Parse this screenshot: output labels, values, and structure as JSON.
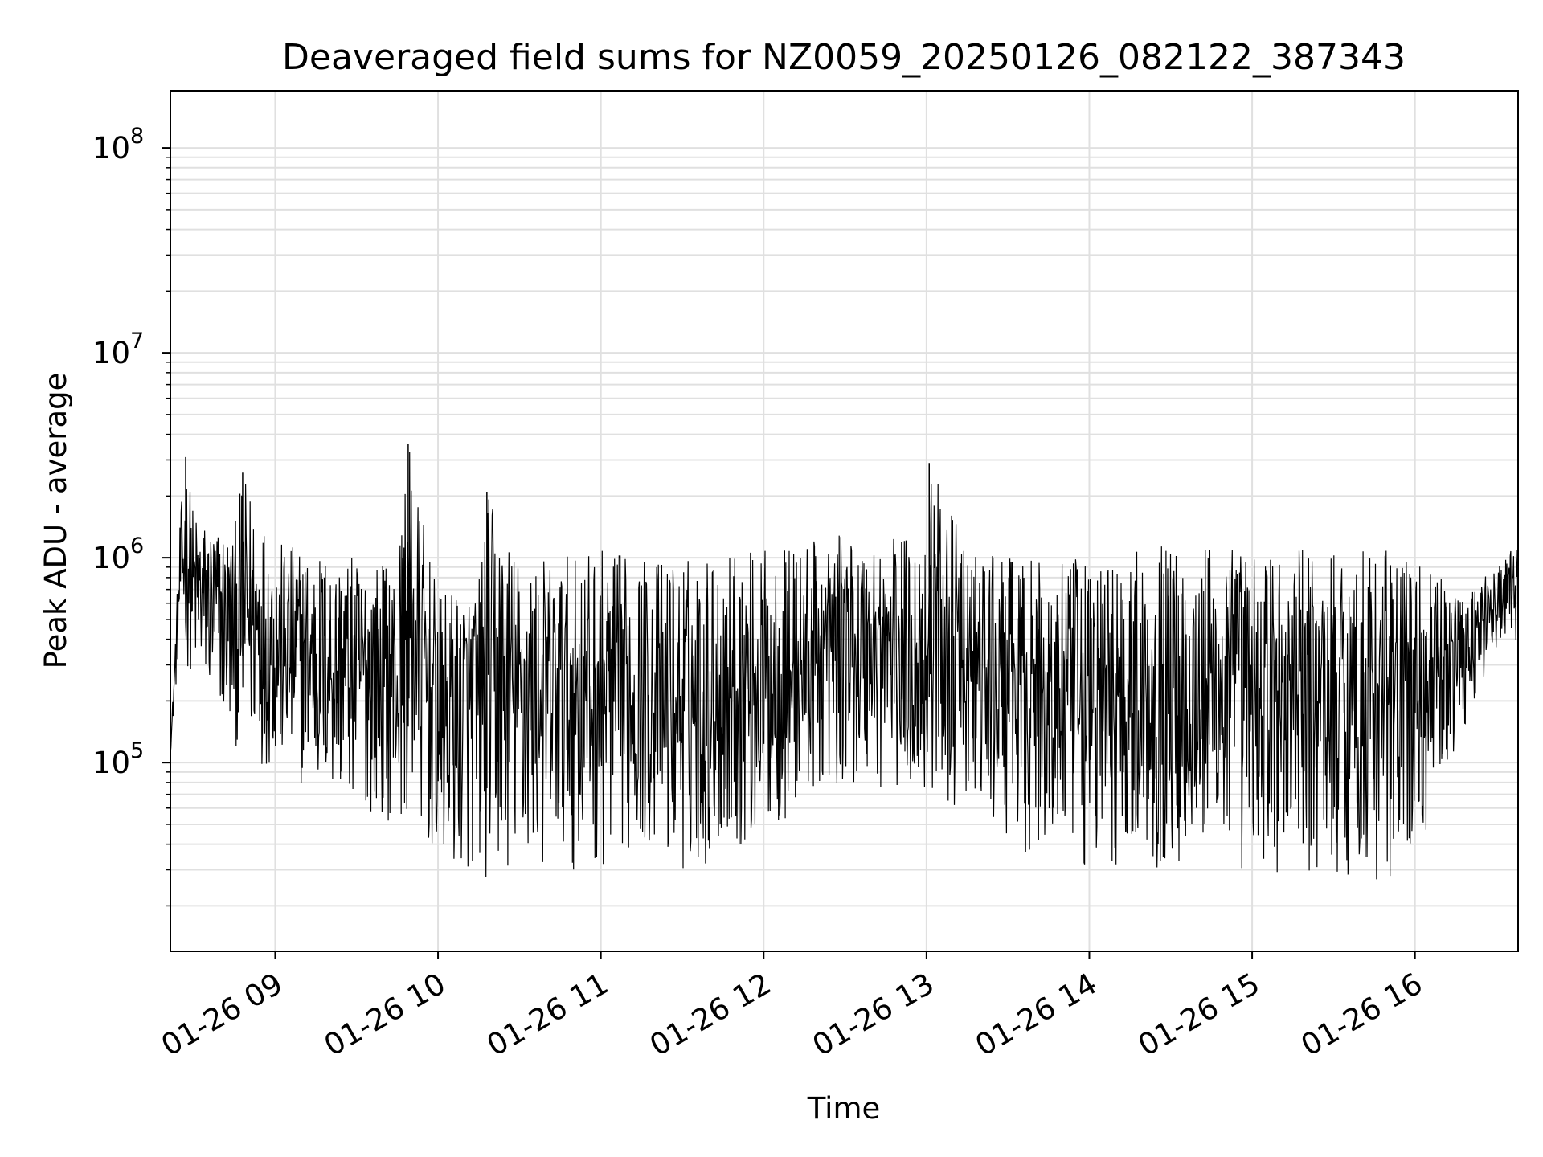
{
  "chart_data": {
    "type": "line",
    "title": "Deaveraged field sums for NZ0059_20250126_082122_387343",
    "xlabel": "Time",
    "ylabel": "Peak ADU - average",
    "yscale": "log",
    "ylim": [
      12000,
      190000000
    ],
    "xlim": [
      "2025-01-26T08:21:22",
      "2025-01-26T16:38:00"
    ],
    "x_ticks": [
      "01-26 09",
      "01-26 10",
      "01-26 11",
      "01-26 12",
      "01-26 13",
      "01-26 14",
      "01-26 15",
      "01-26 16"
    ],
    "y_ticks": [
      {
        "base": "10",
        "exp": "5"
      },
      {
        "base": "10",
        "exp": "6"
      },
      {
        "base": "10",
        "exp": "7"
      },
      {
        "base": "10",
        "exp": "8"
      }
    ],
    "grid": true,
    "line_color": "#000000",
    "series": [
      {
        "x": [
          "2025-01-26T08:21:22",
          "2025-01-26T08:25:00",
          "2025-01-26T08:27:00",
          "2025-01-26T08:30:00",
          "2025-01-26T08:35:00",
          "2025-01-26T08:45:00",
          "2025-01-26T08:48:00",
          "2025-01-26T09:00:00",
          "2025-01-26T09:15:00",
          "2025-01-26T09:30:00",
          "2025-01-26T09:45:00",
          "2025-01-26T09:49:00",
          "2025-01-26T10:00:00",
          "2025-01-26T10:15:00",
          "2025-01-26T10:18:00",
          "2025-01-26T10:30:00",
          "2025-01-26T10:45:00",
          "2025-01-26T11:00:00",
          "2025-01-26T11:15:00",
          "2025-01-26T11:30:00",
          "2025-01-26T11:45:00",
          "2025-01-26T12:00:00",
          "2025-01-26T12:15:00",
          "2025-01-26T12:30:00",
          "2025-01-26T12:45:00",
          "2025-01-26T13:00:00",
          "2025-01-26T13:01:00",
          "2025-01-26T13:15:00",
          "2025-01-26T13:30:00",
          "2025-01-26T13:45:00",
          "2025-01-26T14:00:00",
          "2025-01-26T14:15:00",
          "2025-01-26T14:30:00",
          "2025-01-26T14:45:00",
          "2025-01-26T15:00:00",
          "2025-01-26T15:15:00",
          "2025-01-26T15:30:00",
          "2025-01-26T15:45:00",
          "2025-01-26T16:00:00",
          "2025-01-26T16:15:00",
          "2025-01-26T16:30:00",
          "2025-01-26T16:38:00"
        ],
        "y_high": [
          110000,
          1600000,
          3100000,
          1700000,
          1500000,
          1400000,
          2600000,
          1200000,
          1100000,
          1000000,
          950000,
          3600000,
          650000,
          800000,
          2100000,
          1000000,
          1000000,
          1100000,
          1000000,
          1000000,
          1100000,
          1100000,
          1200000,
          1300000,
          1300000,
          1300000,
          2900000,
          1100000,
          1000000,
          950000,
          1000000,
          1100000,
          1200000,
          1200000,
          1100000,
          1100000,
          1100000,
          1200000,
          1000000,
          700000,
          900000,
          1200000
        ],
        "y_low": [
          110000,
          400000,
          300000,
          250000,
          200000,
          120000,
          110000,
          90000,
          70000,
          60000,
          50000,
          50000,
          30000,
          28000,
          25000,
          28000,
          30000,
          30000,
          40000,
          28000,
          35000,
          40000,
          60000,
          80000,
          70000,
          60000,
          70000,
          55000,
          40000,
          32000,
          28000,
          32000,
          30000,
          30000,
          28000,
          25000,
          28000,
          25000,
          30000,
          120000,
          350000,
          400000
        ]
      }
    ]
  }
}
